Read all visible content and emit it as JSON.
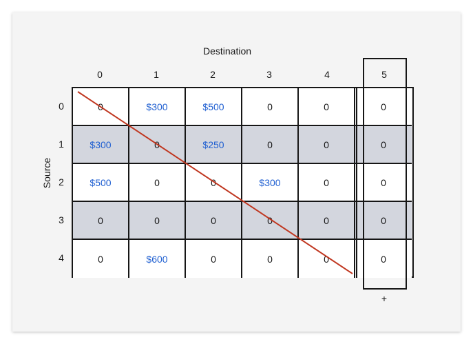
{
  "header": {
    "title": "Destination"
  },
  "columns": [
    "0",
    "1",
    "2",
    "3",
    "4",
    "5"
  ],
  "rows": [
    "0",
    "1",
    "2",
    "3",
    "4"
  ],
  "side_label": "Source",
  "matrix": [
    [
      "0",
      "$300",
      "$500",
      "0",
      "0",
      "0"
    ],
    [
      "$300",
      "0",
      "$250",
      "0",
      "0",
      "0"
    ],
    [
      "$500",
      "0",
      "0",
      "$300",
      "0",
      "0"
    ],
    [
      "0",
      "0",
      "0",
      "0",
      "0",
      "0"
    ],
    [
      "0",
      "$600",
      "0",
      "0",
      "0",
      "0"
    ]
  ],
  "footer": {
    "plus_label": "+"
  },
  "colors": {
    "money": "#1f5fd1",
    "shaded_row": "#d3d6de",
    "diagonal_line": "#c0361f",
    "grid_line": "#161616"
  }
}
